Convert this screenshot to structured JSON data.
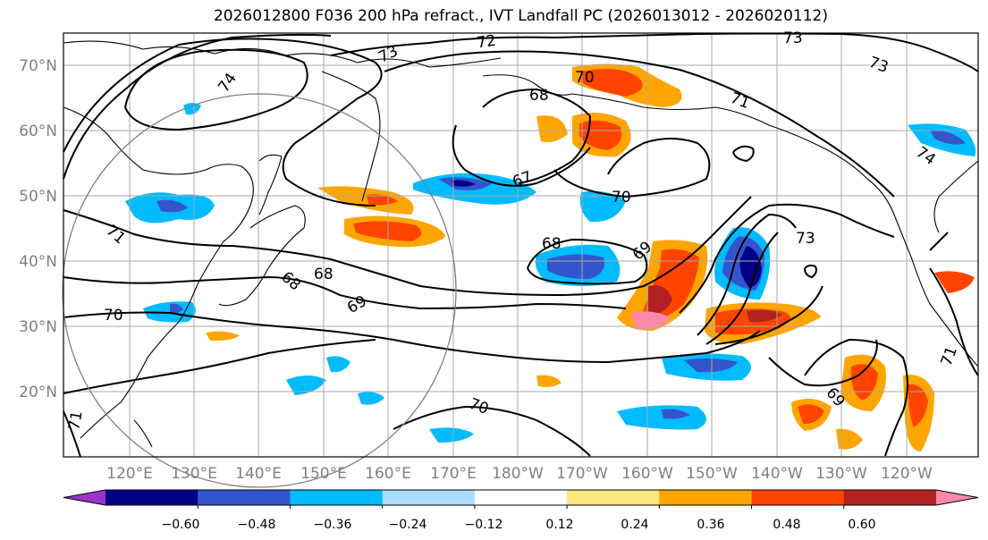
{
  "title": "2026012800 F036 200 hPa refract., IVT Landfall PC (2026013012 - 2026020112)",
  "lat_labels": [
    "70°N",
    "60°N",
    "50°N",
    "40°N",
    "30°N",
    "20°N"
  ],
  "lon_labels": [
    "120°E",
    "130°E",
    "140°E",
    "150°E",
    "160°E",
    "170°E",
    "180°W",
    "170°W",
    "160°W",
    "150°W",
    "140°W",
    "130°W",
    "120°W"
  ],
  "contour_labels": [
    "74",
    "73",
    "72",
    "73",
    "73",
    "71",
    "74",
    "68",
    "70",
    "67",
    "70",
    "68",
    "69",
    "73",
    "71",
    "68",
    "68",
    "69",
    "70",
    "70",
    "71",
    "69",
    "71"
  ],
  "colorbar": {
    "ticks": [
      "−0.60",
      "−0.48",
      "−0.36",
      "−0.24",
      "−0.12",
      "0.12",
      "0.24",
      "0.36",
      "0.48",
      "0.60"
    ],
    "colors": [
      "#9933cc",
      "#000088",
      "#3355cc",
      "#00bbff",
      "#aaddff",
      "#ffffff",
      "#ffe680",
      "#ffa500",
      "#ff4400",
      "#b22222",
      "#ff88aa"
    ]
  }
}
